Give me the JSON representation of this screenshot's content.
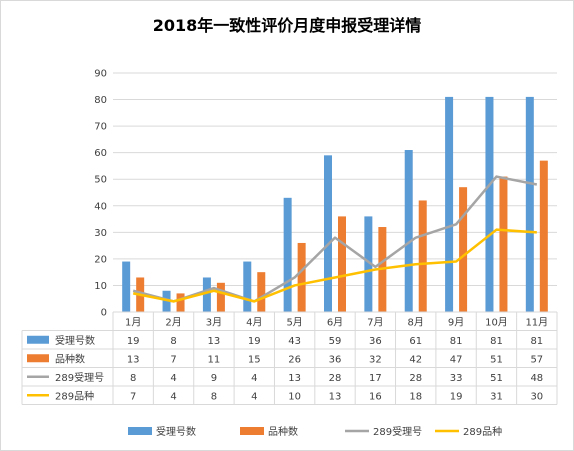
{
  "chart_data": {
    "type": "bar",
    "title": "2018年一致性评价月度申报受理详情",
    "categories": [
      "1月",
      "2月",
      "3月",
      "4月",
      "5月",
      "6月",
      "7月",
      "8月",
      "9月",
      "10月",
      "11月"
    ],
    "ylim": [
      0,
      90
    ],
    "yticks": [
      0,
      10,
      20,
      30,
      40,
      50,
      60,
      70,
      80,
      90
    ],
    "grid": true,
    "legend_position": "bottom",
    "series": [
      {
        "name": "受理号数",
        "kind": "bar",
        "color": "#5b9bd5",
        "values": [
          19,
          8,
          13,
          19,
          43,
          59,
          36,
          61,
          81,
          81,
          81
        ]
      },
      {
        "name": "品种数",
        "kind": "bar",
        "color": "#ed7d31",
        "values": [
          13,
          7,
          11,
          15,
          26,
          36,
          32,
          42,
          47,
          51,
          57
        ]
      },
      {
        "name": "289受理号",
        "kind": "line",
        "color": "#a5a5a5",
        "values": [
          8,
          4,
          9,
          4,
          13,
          28,
          17,
          28,
          33,
          51,
          48
        ]
      },
      {
        "name": "289品种",
        "kind": "line",
        "color": "#ffc000",
        "values": [
          7,
          4,
          8,
          4,
          10,
          13,
          16,
          18,
          19,
          31,
          30
        ]
      }
    ]
  }
}
